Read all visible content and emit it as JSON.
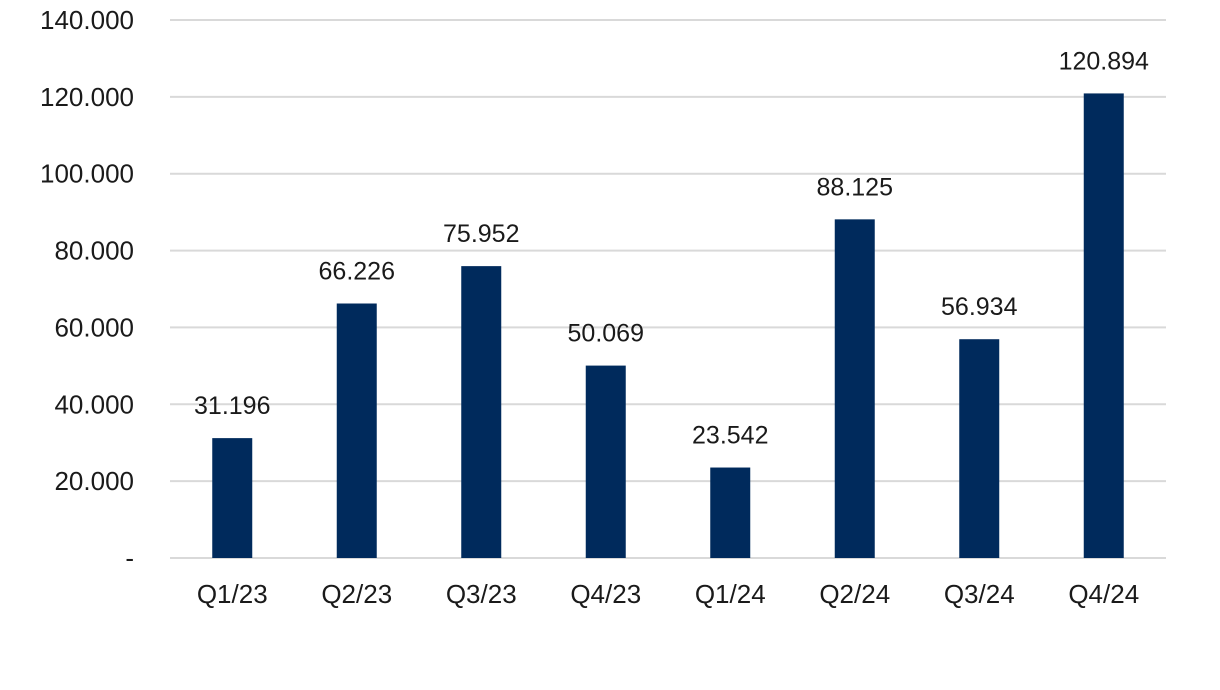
{
  "chart_data": {
    "type": "bar",
    "categories": [
      "Q1/23",
      "Q2/23",
      "Q3/23",
      "Q4/23",
      "Q1/24",
      "Q2/24",
      "Q3/24",
      "Q4/24"
    ],
    "values": [
      31196,
      66226,
      75952,
      50069,
      23542,
      88125,
      56934,
      120894
    ],
    "value_labels": [
      "31.196",
      "66.226",
      "75.952",
      "50.069",
      "23.542",
      "88.125",
      "56.934",
      "120.894"
    ],
    "ylim": [
      0,
      140000
    ],
    "yticks": [
      0,
      20000,
      40000,
      60000,
      80000,
      100000,
      120000,
      140000
    ],
    "ytick_labels": [
      "-",
      "20.000",
      "40.000",
      "60.000",
      "80.000",
      "100.000",
      "120.000",
      "140.000"
    ],
    "title": "",
    "xlabel": "",
    "ylabel": "",
    "grid": true,
    "legend": "none",
    "colors": {
      "bar": "#002A5C",
      "grid": "#D9D9D9",
      "text": "#1A1A1A"
    }
  }
}
